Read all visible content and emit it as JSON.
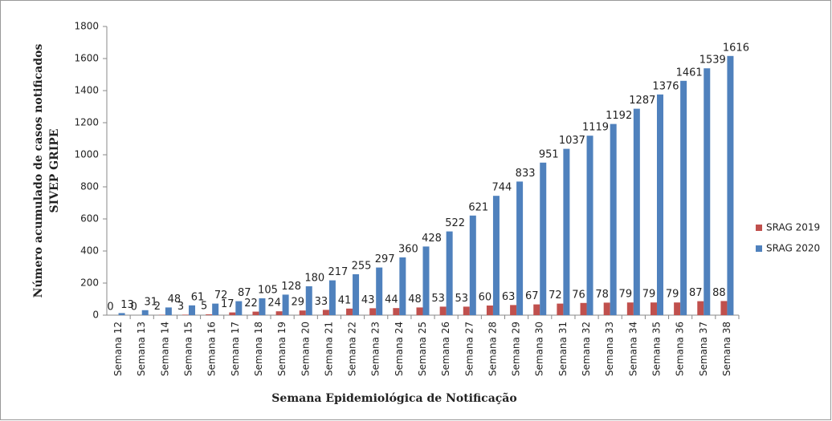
{
  "chart_data": {
    "type": "bar",
    "ylabel": [
      "Número acumulado de casos notificados",
      "SIVEP GRIPE"
    ],
    "xlabel": "Semana Epidemiológica de Notificação",
    "categories": [
      "Semana 12",
      "Semana 13",
      "Semana 14",
      "Semana 15",
      "Semana 16",
      "Semana 17",
      "Semana 18",
      "Semana 19",
      "Semana 20",
      "Semana 21",
      "Semana 22",
      "Semana 23",
      "Semana 24",
      "Semana 25",
      "Semana 26",
      "Semana 27",
      "Semana 28",
      "Semana 29",
      "Semana 30",
      "Semana 31",
      "Semana 32",
      "Semana 33",
      "Semana 34",
      "Semana 35",
      "Semana 36",
      "Semana 37",
      "Semana 38"
    ],
    "series": [
      {
        "name": "SRAG 2019",
        "color": "#c0504d",
        "values": [
          0,
          0,
          2,
          3,
          5,
          17,
          22,
          24,
          29,
          33,
          41,
          43,
          44,
          48,
          53,
          53,
          60,
          63,
          67,
          72,
          76,
          78,
          79,
          79,
          79,
          87,
          88
        ]
      },
      {
        "name": "SRAG 2020",
        "color": "#4f81bd",
        "values": [
          13,
          31,
          48,
          61,
          72,
          87,
          105,
          128,
          180,
          217,
          255,
          297,
          360,
          428,
          522,
          621,
          744,
          833,
          951,
          1037,
          1119,
          1192,
          1287,
          1376,
          1461,
          1539,
          1616
        ]
      }
    ],
    "ylim": [
      0,
      1800
    ],
    "yticks": [
      0,
      200,
      400,
      600,
      800,
      1000,
      1200,
      1400,
      1600,
      1800
    ],
    "grid": false,
    "legend": "right"
  }
}
